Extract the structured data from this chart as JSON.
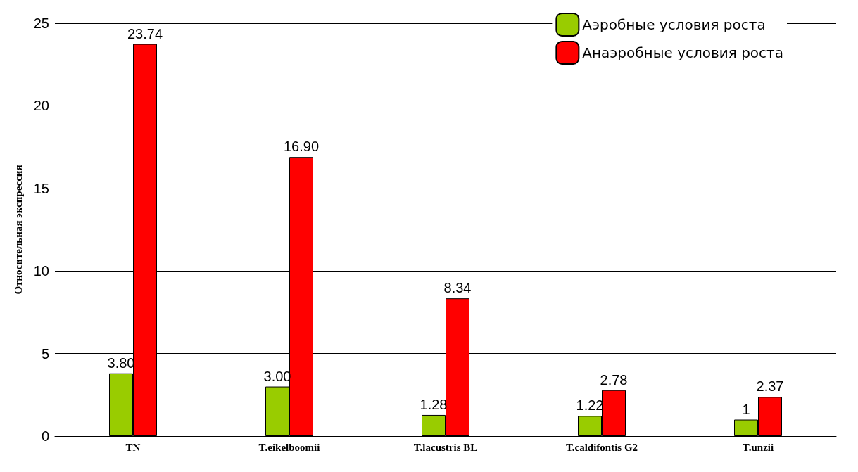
{
  "chart_data": {
    "type": "bar",
    "ylabel": "Относительная экспрессия",
    "categories": [
      "TN",
      "T.eikelboomii",
      "T.lacustris BL",
      "T.caldifontis G2",
      "T.unzii"
    ],
    "series": [
      {
        "name": "Аэробные условия роста",
        "color": "#99cc00",
        "values": [
          3.8,
          3.0,
          1.28,
          1.22,
          1
        ],
        "value_labels": [
          "3.80",
          "3.00",
          "1.28",
          "1.22",
          "1"
        ]
      },
      {
        "name": "Анаэробные условия роста",
        "color": "#ff0000",
        "values": [
          23.74,
          16.9,
          8.34,
          2.78,
          2.37
        ],
        "value_labels": [
          "23.74",
          "16.90",
          "8.34",
          "2.78",
          "2.37"
        ]
      }
    ],
    "ylim": [
      0,
      25
    ],
    "yticks": [
      0,
      5,
      10,
      15,
      20,
      25
    ],
    "grid": "y",
    "legend": "top right"
  }
}
